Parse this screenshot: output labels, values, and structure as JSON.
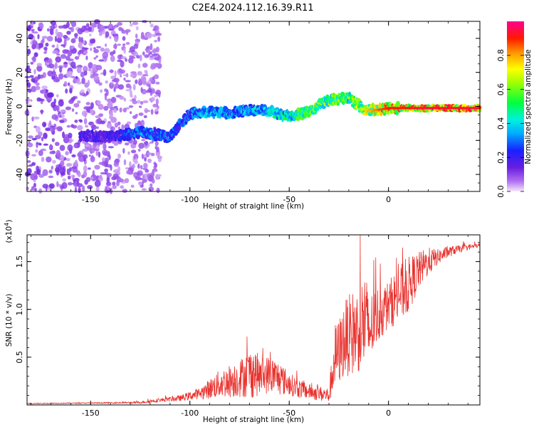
{
  "title": "C2E4.2024.112.16.39.R11",
  "chart_data": [
    {
      "type": "heatmap",
      "xlabel": "Height of straight line (km)",
      "ylabel": "Frequency (Hz)",
      "xlim": [
        -182,
        46
      ],
      "ylim": [
        -50,
        50
      ],
      "xticks": [
        -150,
        -100,
        -50,
        0
      ],
      "yticks": [
        -40,
        -20,
        0,
        20,
        40
      ],
      "colorbar": {
        "label": "Normalized spectral amplitude",
        "range": [
          0,
          1
        ],
        "ticks": [
          "0.0",
          "0.2",
          "0.4",
          "0.6",
          "0.8"
        ],
        "colormap": "rainbow (magenta-blue-cyan-green-yellow-red-pink)"
      },
      "ridge": {
        "x": [
          -155,
          -140,
          -125,
          -110,
          -100,
          -90,
          -80,
          -70,
          -60,
          -50,
          -40,
          -30,
          -20,
          -12,
          -5,
          0,
          10,
          20,
          30,
          46
        ],
        "y": [
          -17,
          -18,
          -15,
          -18,
          -4,
          -3,
          -4,
          -2,
          -3,
          -6,
          -3,
          4,
          5,
          -2,
          -2,
          -1,
          -1,
          -1,
          -1,
          -1
        ],
        "amplitude": [
          0.2,
          0.2,
          0.35,
          0.3,
          0.3,
          0.4,
          0.35,
          0.4,
          0.45,
          0.5,
          0.6,
          0.65,
          0.6,
          0.7,
          0.8,
          0.85,
          0.85,
          0.9,
          0.88,
          0.9
        ]
      },
      "noise_region": {
        "x_from": -182,
        "x_to": -115,
        "amplitude": 0.1
      }
    },
    {
      "type": "line",
      "xlabel": "Height of straight line (km)",
      "ylabel": "SNR (10 * v/v)",
      "scale_label": "(x10",
      "scale_exponent": "4",
      "xlim": [
        -182,
        46
      ],
      "ylim": [
        0,
        1.78
      ],
      "xticks": [
        -150,
        -100,
        -50,
        0
      ],
      "yticks": [
        0.5,
        1.0,
        1.5
      ],
      "ytick_labels": [
        "0.5",
        "1.0",
        "1.5"
      ],
      "color": "#e8322e",
      "envelope": {
        "x": [
          -182,
          -150,
          -125,
          -120,
          -115,
          -105,
          -95,
          -85,
          -75,
          -68,
          -65,
          -60,
          -55,
          -50,
          -45,
          -40,
          -35,
          -30,
          -27,
          -25,
          -22,
          -18,
          -14,
          -12,
          -10,
          -8,
          -5,
          0,
          5,
          10,
          15,
          20,
          25,
          30,
          35,
          40,
          46
        ],
        "mean": [
          0.015,
          0.02,
          0.025,
          0.04,
          0.05,
          0.07,
          0.12,
          0.22,
          0.28,
          0.35,
          0.3,
          0.32,
          0.28,
          0.22,
          0.17,
          0.14,
          0.12,
          0.1,
          0.5,
          0.55,
          0.7,
          0.75,
          0.8,
          0.9,
          0.75,
          0.85,
          0.95,
          1.05,
          1.15,
          1.25,
          1.4,
          1.5,
          1.55,
          1.6,
          1.63,
          1.65,
          1.67
        ],
        "noise": [
          0.005,
          0.005,
          0.01,
          0.02,
          0.02,
          0.03,
          0.06,
          0.15,
          0.2,
          0.28,
          0.2,
          0.2,
          0.18,
          0.12,
          0.1,
          0.08,
          0.08,
          0.08,
          0.35,
          0.35,
          0.4,
          0.45,
          0.45,
          0.6,
          0.4,
          0.35,
          0.3,
          0.25,
          0.3,
          0.3,
          0.2,
          0.15,
          0.08,
          0.06,
          0.04,
          0.03,
          0.02
        ]
      }
    }
  ]
}
